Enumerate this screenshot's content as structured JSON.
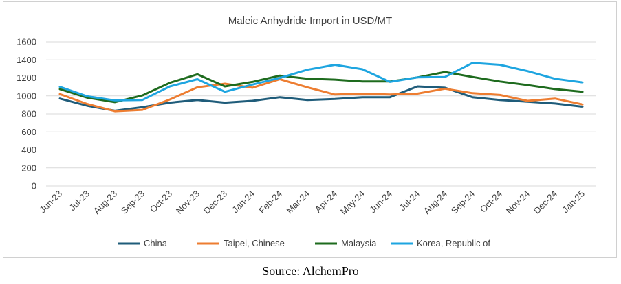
{
  "chart_data": {
    "type": "line",
    "title": "Maleic Anhydride Import in USD/MT",
    "xlabel": "",
    "ylabel": "",
    "ylim": [
      0,
      1600
    ],
    "yticks": [
      0,
      200,
      400,
      600,
      800,
      1000,
      1200,
      1400,
      1600
    ],
    "grid": true,
    "legend": "bottom",
    "categories": [
      "Jun-23",
      "Jul-23",
      "Aug-23",
      "Sep-23",
      "Oct-23",
      "Nov-23",
      "Dec-23",
      "Jan-24",
      "Feb-24",
      "Mar-24",
      "Apr-24",
      "May-24",
      "Jun-24",
      "Jul-24",
      "Aug-24",
      "Sep-24",
      "Oct-24",
      "Nov-24",
      "Dec-24",
      "Jan-25"
    ],
    "series": [
      {
        "name": "China",
        "color": "#1f5c7a",
        "values": [
          970,
          890,
          835,
          875,
          925,
          955,
          925,
          945,
          985,
          955,
          965,
          985,
          985,
          1105,
          1090,
          985,
          955,
          935,
          915,
          880
        ]
      },
      {
        "name": "Taipei, Chinese",
        "color": "#ed7d31",
        "values": [
          1020,
          910,
          830,
          845,
          960,
          1095,
          1135,
          1090,
          1185,
          1095,
          1015,
          1025,
          1015,
          1025,
          1080,
          1030,
          1010,
          945,
          970,
          905
        ]
      },
      {
        "name": "Malaysia",
        "color": "#1e6b1e",
        "values": [
          1075,
          980,
          930,
          1005,
          1145,
          1240,
          1105,
          1155,
          1225,
          1190,
          1180,
          1160,
          1160,
          1205,
          1265,
          1210,
          1160,
          1120,
          1075,
          1045
        ]
      },
      {
        "name": "Korea, Republic of",
        "color": "#1ea5e0",
        "values": [
          1100,
          995,
          950,
          955,
          1105,
          1185,
          1045,
          1125,
          1200,
          1290,
          1345,
          1295,
          1155,
          1205,
          1210,
          1365,
          1345,
          1275,
          1190,
          1150
        ]
      }
    ]
  },
  "source_text": "Source: AlchemPro"
}
